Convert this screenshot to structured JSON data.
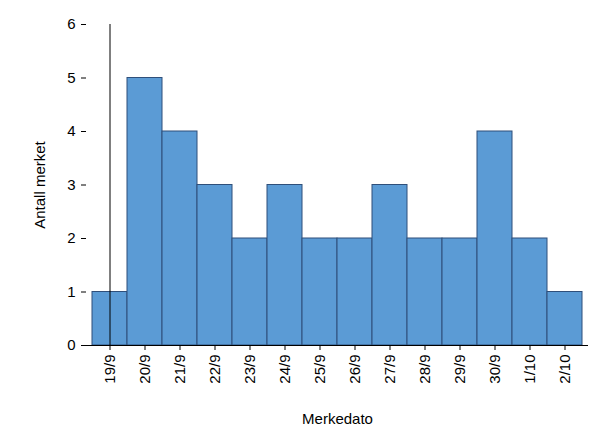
{
  "chart_data": {
    "type": "bar",
    "x_label": "Merkedato",
    "y_label": "Antall merket",
    "categories": [
      "19/9",
      "20/9",
      "21/9",
      "22/9",
      "23/9",
      "24/9",
      "25/9",
      "26/9",
      "27/9",
      "28/9",
      "29/9",
      "30/9",
      "1/10",
      "2/10"
    ],
    "values": [
      1,
      5,
      4,
      3,
      2,
      3,
      2,
      2,
      3,
      2,
      2,
      4,
      2,
      1
    ],
    "color": "#5b9bd5",
    "ylim": [
      0,
      6
    ],
    "yticks": [
      0,
      1,
      2,
      3,
      4,
      5,
      6
    ],
    "grid": false
  }
}
